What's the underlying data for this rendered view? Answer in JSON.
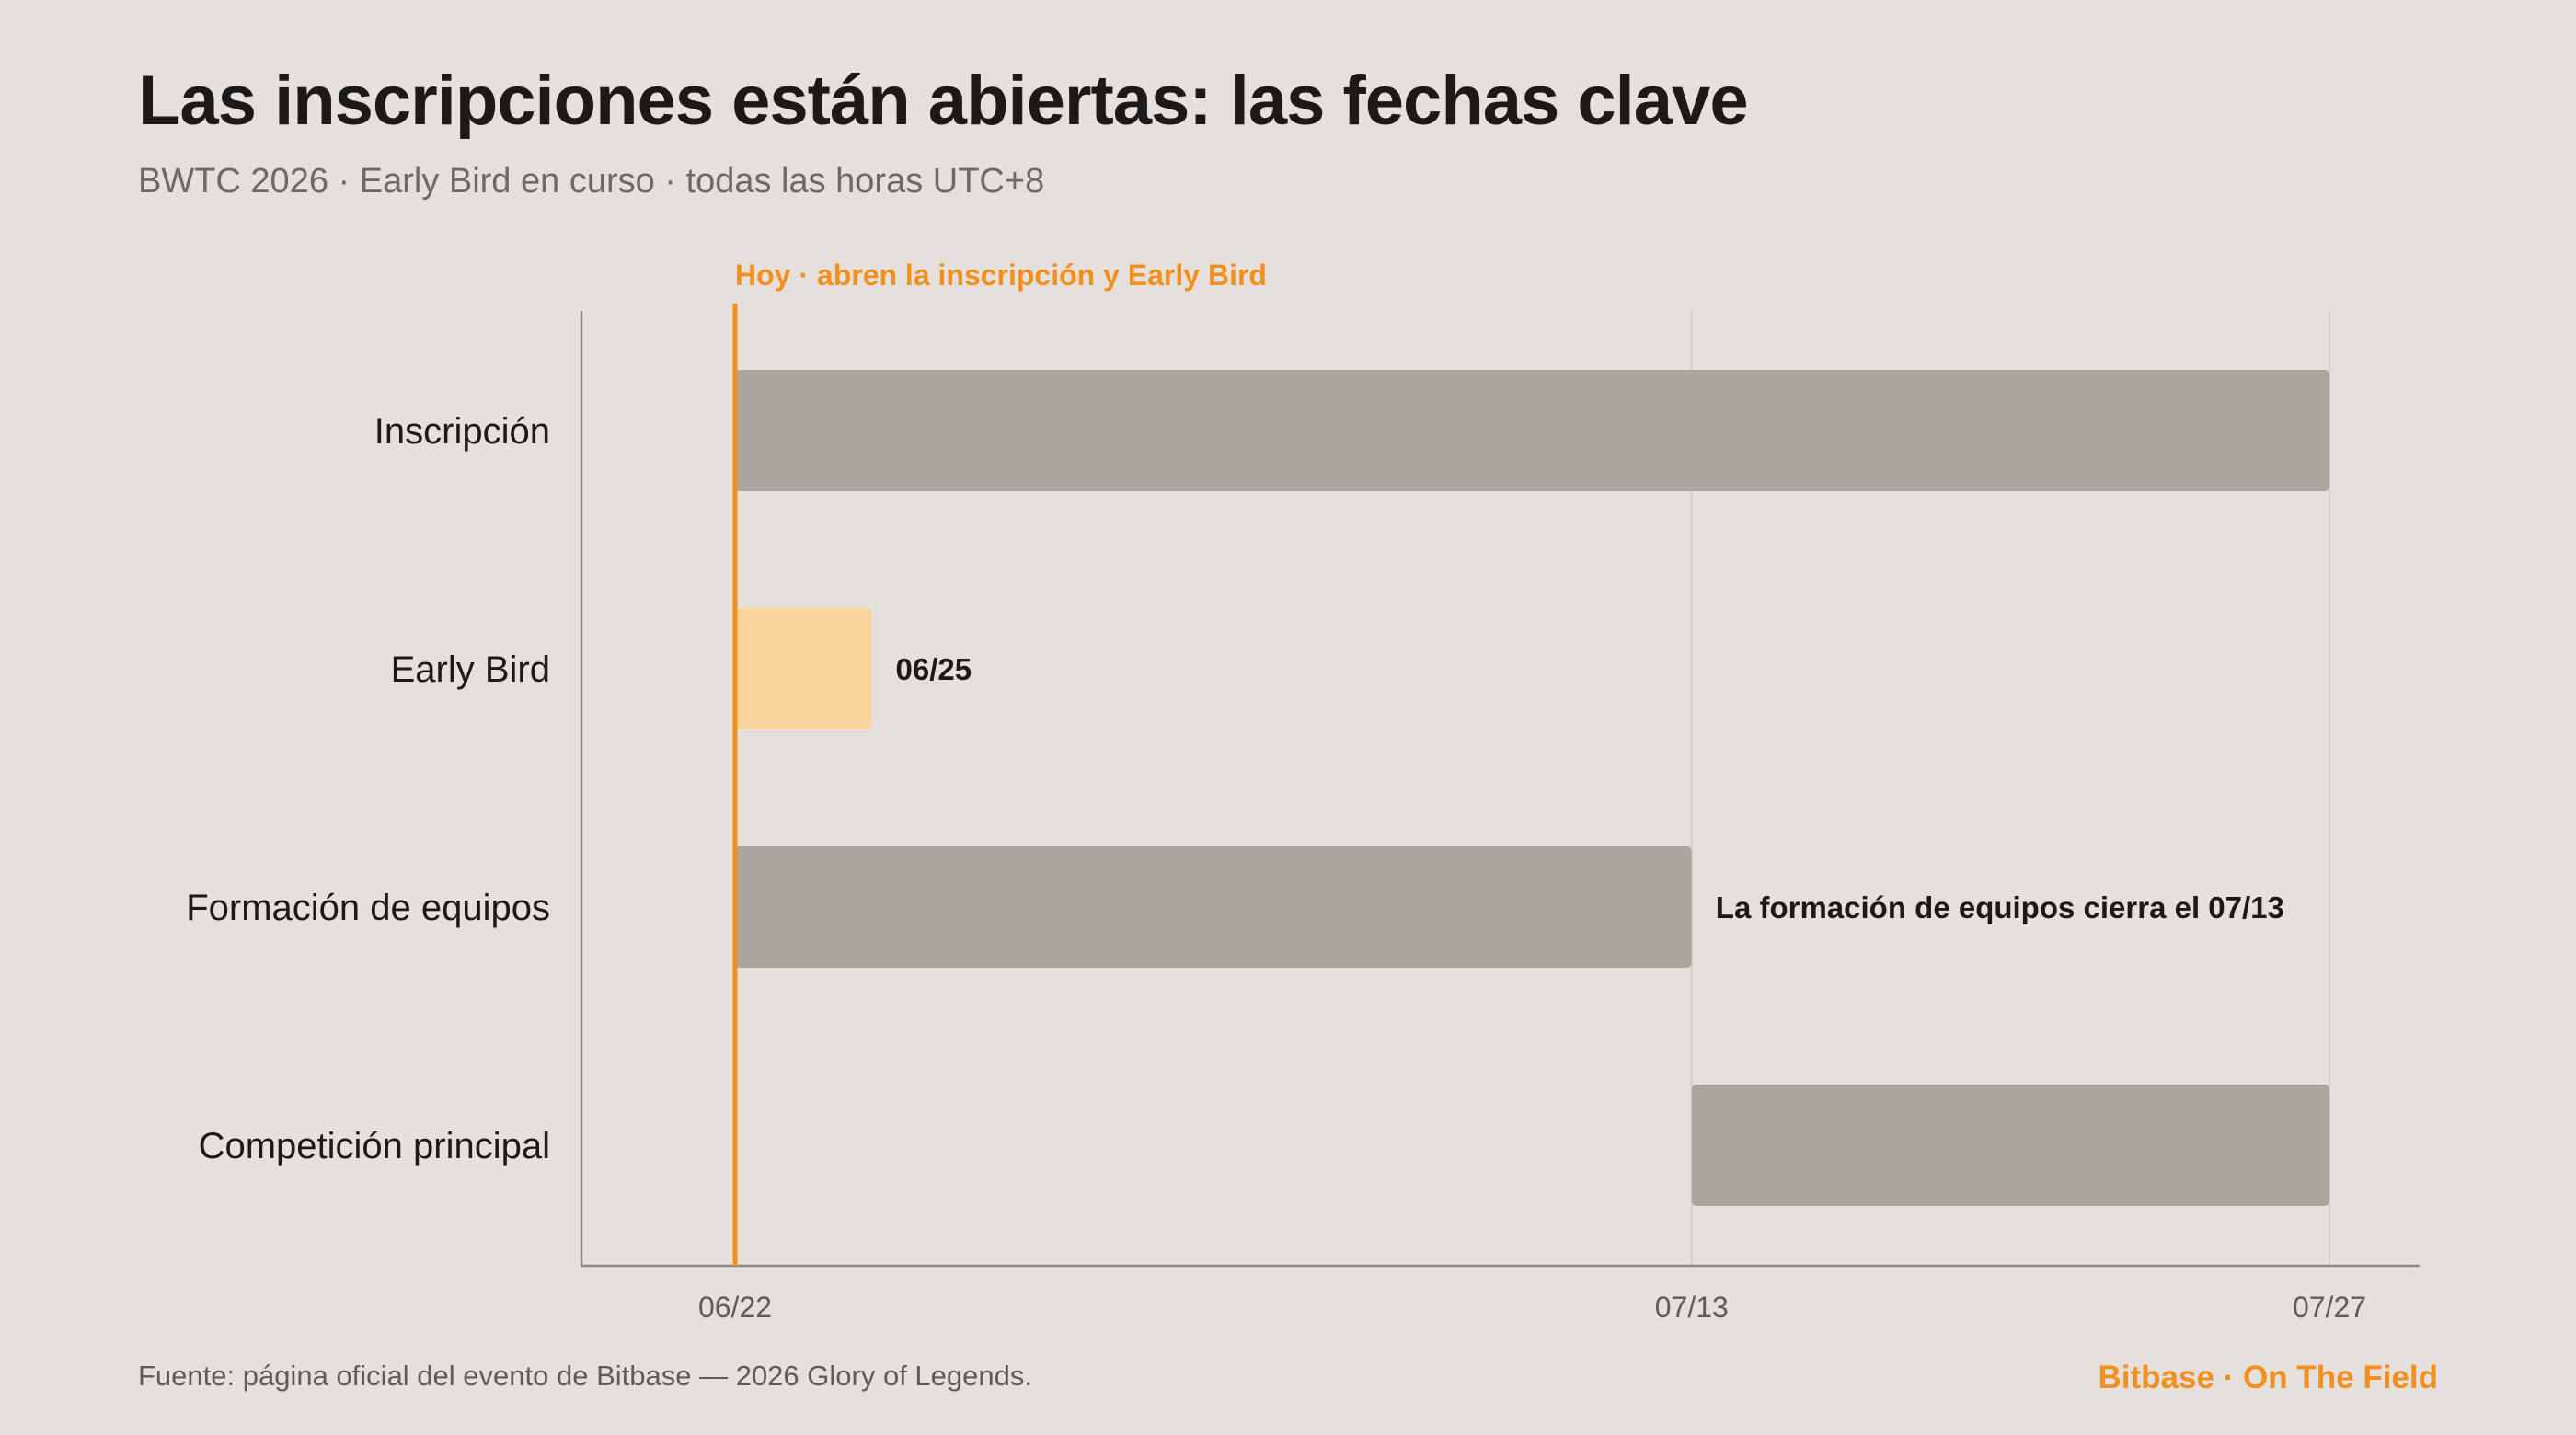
{
  "header": {
    "title": "Las inscripciones están abiertas: las fechas clave",
    "subtitle": "BWTC 2026 · Early Bird en curso · todas las horas UTC+8"
  },
  "footer": {
    "source": "Fuente: página oficial del evento de Bitbase — 2026 Glory of Legends.",
    "brand": "Bitbase · On The Field"
  },
  "colors": {
    "background": "#e5e0db",
    "bar_gray": "#aaa59f",
    "bar_early": "#fad59e",
    "accent": "#f0901f",
    "grid": "#d3cec9",
    "axis": "#8f8a85"
  },
  "chart_data": {
    "type": "bar",
    "orientation": "horizontal-timeline",
    "xlim": [
      "06/22",
      "07/27"
    ],
    "x_ticks": [
      "06/22",
      "07/13",
      "07/27"
    ],
    "categories": [
      "Inscripción",
      "Early Bird",
      "Formación de equipos",
      "Competición principal"
    ],
    "bars": [
      {
        "category": "Inscripción",
        "start": "06/22",
        "end": "07/27",
        "highlight": false,
        "label": ""
      },
      {
        "category": "Early Bird",
        "start": "06/22",
        "end": "06/25",
        "highlight": true,
        "label": "06/25"
      },
      {
        "category": "Formación de equipos",
        "start": "06/22",
        "end": "07/13",
        "highlight": false,
        "label": "La formación de equipos cierra el 07/13"
      },
      {
        "category": "Competición principal",
        "start": "07/13",
        "end": "07/27",
        "highlight": false,
        "label": ""
      }
    ],
    "today": {
      "date": "06/22",
      "label": "Hoy · abren la inscripción y Early Bird"
    },
    "grid": true,
    "legend": "none"
  }
}
